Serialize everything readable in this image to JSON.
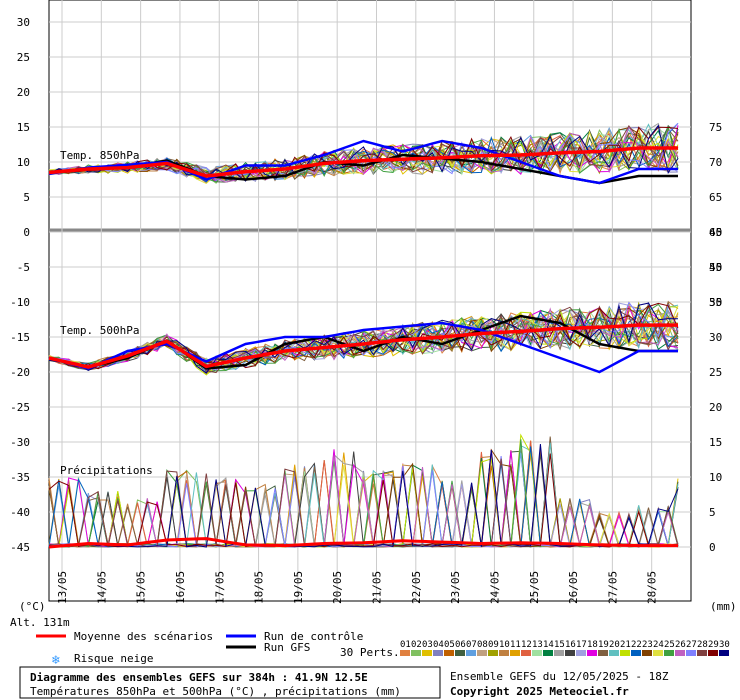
{
  "chart_data": {
    "type": "line",
    "title": "Diagramme des ensembles GEFS sur 384h : 41.9N 12.5E",
    "subtitle": "Températures 850hPa et 500hPa (°C) , précipitations (mm)",
    "run_info": "Ensemble GEFS du 12/05/2025 - 18Z",
    "copyright": "Copyright 2025 Meteociel.fr",
    "altitude": "Alt. 131m",
    "left_unit": "(°C)",
    "right_unit": "(mm)",
    "left_ticks": [
      "30",
      "25",
      "20",
      "15",
      "10",
      "5",
      "0",
      "-5",
      "-10",
      "-15",
      "-20",
      "-25",
      "-30",
      "-35",
      "-40",
      "-45"
    ],
    "right_ticks_temp850": [
      "75",
      "70",
      "65",
      "60",
      "55",
      "50"
    ],
    "right_ticks_temp500": [
      "45",
      "40",
      "35",
      "30",
      "25",
      "20"
    ],
    "right_ticks_precip": [
      "15",
      "10",
      "5",
      "0"
    ],
    "panel_labels": {
      "t850": "Temp. 850hPa",
      "t500": "Temp. 500hPa",
      "precip": "Précipitations"
    },
    "dates": [
      "13/05",
      "14/05",
      "15/05",
      "16/05",
      "17/05",
      "18/05",
      "19/05",
      "20/05",
      "21/05",
      "22/05",
      "23/05",
      "24/05",
      "25/05",
      "26/05",
      "27/05",
      "28/05"
    ],
    "legend": {
      "mean": "Moyenne des scénarios",
      "control": "Run de contrôle",
      "gfs": "Run GFS",
      "snow": "Risque neige",
      "perts": "30 Perts."
    },
    "perturbation_ids": [
      "01",
      "02",
      "03",
      "04",
      "05",
      "06",
      "07",
      "08",
      "09",
      "10",
      "11",
      "12",
      "13",
      "14",
      "15",
      "16",
      "17",
      "18",
      "19",
      "20",
      "21",
      "22",
      "23",
      "24",
      "25",
      "26",
      "27",
      "28",
      "29",
      "30"
    ],
    "perturbation_colors": [
      "#e08040",
      "#80c060",
      "#e0c000",
      "#8080c0",
      "#c06000",
      "#406040",
      "#60a0e0",
      "#c0a080",
      "#a0a000",
      "#c08040",
      "#e0a000",
      "#e06040",
      "#a0e0a0",
      "#008040",
      "#a0a0a0",
      "#404040",
      "#a0a0e0",
      "#e000e0",
      "#806040",
      "#60c0c0",
      "#c0e000",
      "#0060c0",
      "#804000",
      "#e0e040",
      "#40a040",
      "#c060c0",
      "#8080ff",
      "#804040",
      "#800000",
      "#000080"
    ],
    "mean_850": [
      8.5,
      9,
      9.2,
      9.8,
      8,
      8.6,
      9,
      9.8,
      10.2,
      10.4,
      10.6,
      10.9,
      11,
      11.3,
      11.5,
      12
    ],
    "control_850": [
      8.3,
      9.2,
      9.6,
      10,
      7.5,
      9.5,
      9.5,
      11,
      13,
      11.5,
      13,
      12,
      10,
      8,
      7,
      9
    ],
    "gfs_850": [
      8.4,
      9,
      9.3,
      10.2,
      8,
      7.5,
      8,
      10,
      9.5,
      11,
      10.5,
      10,
      9,
      8,
      7,
      8
    ],
    "mean_500": [
      -18,
      -19.3,
      -17.7,
      -15.6,
      -19.2,
      -18,
      -17,
      -16.5,
      -16,
      -15.4,
      -15,
      -14.5,
      -14.2,
      -13.8,
      -13.6,
      -13.3
    ],
    "control_500": [
      -18,
      -19.5,
      -17,
      -16,
      -18.5,
      -16,
      -15,
      -15,
      -14,
      -13.5,
      -13,
      -14,
      -16,
      -18,
      -20,
      -17
    ],
    "gfs_500": [
      -18,
      -19.3,
      -18,
      -15.5,
      -19.5,
      -19,
      -16,
      -15,
      -17,
      -15,
      -16,
      -14,
      -12,
      -13,
      -16,
      -17
    ],
    "precip_mean": [
      0,
      0.5,
      0.3,
      1,
      1.2,
      0.3,
      0.2,
      0.5,
      0.6,
      0.9,
      0.7,
      0.5,
      0.6,
      0.5,
      0.3,
      0.2
    ],
    "precip_peaks_mm": [
      10,
      8,
      7,
      11,
      10.5,
      9,
      12,
      14,
      11,
      12,
      10,
      14,
      16,
      7,
      5,
      6
    ]
  }
}
